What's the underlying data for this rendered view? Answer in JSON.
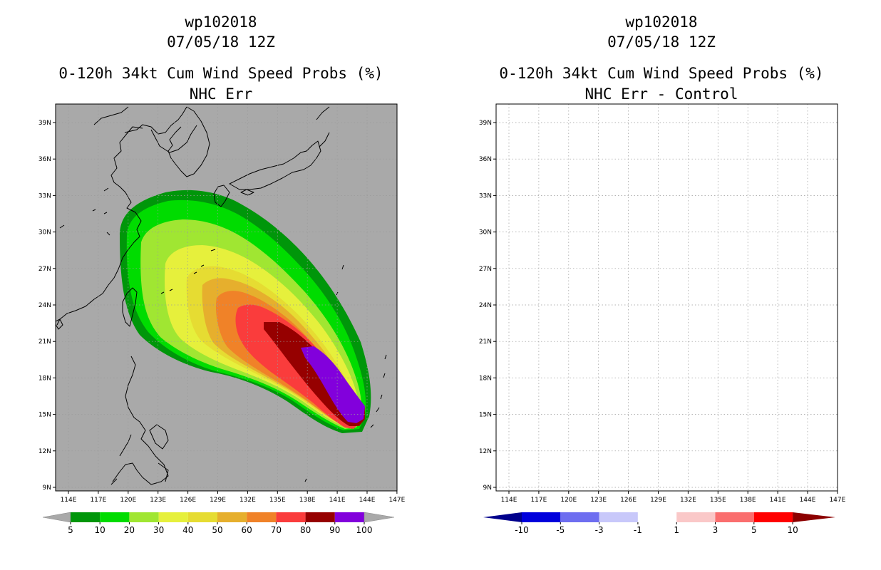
{
  "panels": [
    {
      "id": "left",
      "title_lines": [
        "wp102018",
        "07/05/18 12Z",
        "0-120h 34kt Cum Wind Speed Probs (%)",
        "NHC Err"
      ],
      "background": "#a9a9a9",
      "colorbar": {
        "colors": [
          "#00960a",
          "#00dc00",
          "#a0e632",
          "#e6f03c",
          "#e6dc32",
          "#e6af2d",
          "#f08228",
          "#fa3c3c",
          "#960000",
          "#8200dc"
        ],
        "labels": [
          "5",
          "10",
          "20",
          "30",
          "40",
          "50",
          "60",
          "70",
          "80",
          "90",
          "100"
        ],
        "arrow_color": "#a9a9a9"
      }
    },
    {
      "id": "right",
      "title_lines": [
        "wp102018",
        "07/05/18 12Z",
        "0-120h 34kt Cum Wind Speed Probs (%)",
        "NHC Err - Control"
      ],
      "background": "#ffffff",
      "colorbar": {
        "colors": [
          "#0000dc",
          "#6e6ef0",
          "#c8c8fa",
          "#ffffff",
          "#fac8c8",
          "#fa6e6e",
          "#ff0000"
        ],
        "labels": [
          "-10",
          "-5",
          "-3",
          "-1",
          "1",
          "3",
          "5",
          "10"
        ],
        "left_arrow_color": "#00008c",
        "right_arrow_color": "#8c0000"
      }
    }
  ],
  "axes": {
    "lon_ticks": [
      "114E",
      "117E",
      "120E",
      "123E",
      "126E",
      "129E",
      "132E",
      "135E",
      "138E",
      "141E",
      "144E",
      "147E"
    ],
    "lat_ticks": [
      "9N",
      "12N",
      "15N",
      "18N",
      "21N",
      "24N",
      "27N",
      "30N",
      "33N",
      "36N",
      "39N"
    ]
  }
}
